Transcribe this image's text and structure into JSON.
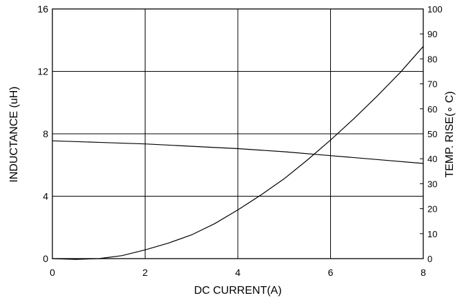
{
  "chart_data": {
    "type": "line",
    "title": "",
    "xlabel": "DC CURRENT(A)",
    "ylabel_left": "INDUCTANCE (uH)",
    "ylabel_right": "TEMP. RISE(∘ C)",
    "xlim": [
      0,
      8
    ],
    "ylim_left": [
      0,
      16
    ],
    "ylim_right": [
      0,
      100
    ],
    "x_ticks": [
      "0",
      "2",
      "4",
      "6",
      "8"
    ],
    "y_left_ticks": [
      "0",
      "4",
      "8",
      "12",
      "16"
    ],
    "y_right_ticks": [
      "0",
      "10",
      "20",
      "30",
      "40",
      "50",
      "60",
      "70",
      "80",
      "90",
      "100"
    ],
    "grid": true,
    "series": [
      {
        "axis": "left",
        "x": [
          0,
          1,
          2,
          3,
          4,
          5,
          6,
          7,
          8
        ],
        "y": [
          7.55,
          7.45,
          7.35,
          7.2,
          7.05,
          6.85,
          6.6,
          6.35,
          6.1
        ]
      },
      {
        "axis": "right",
        "x": [
          0,
          0.5,
          1,
          1.5,
          2,
          2.5,
          3,
          3.5,
          4,
          4.5,
          5,
          5.5,
          6,
          6.5,
          7,
          7.5,
          8
        ],
        "y": [
          0,
          -0.3,
          0,
          1.2,
          3.5,
          6.2,
          9.5,
          14,
          19.5,
          25.5,
          32,
          39.5,
          47.5,
          56,
          65,
          74.5,
          85
        ]
      }
    ],
    "colors": {
      "line": "#000000",
      "grid": "#000000",
      "background": "#ffffff"
    }
  }
}
